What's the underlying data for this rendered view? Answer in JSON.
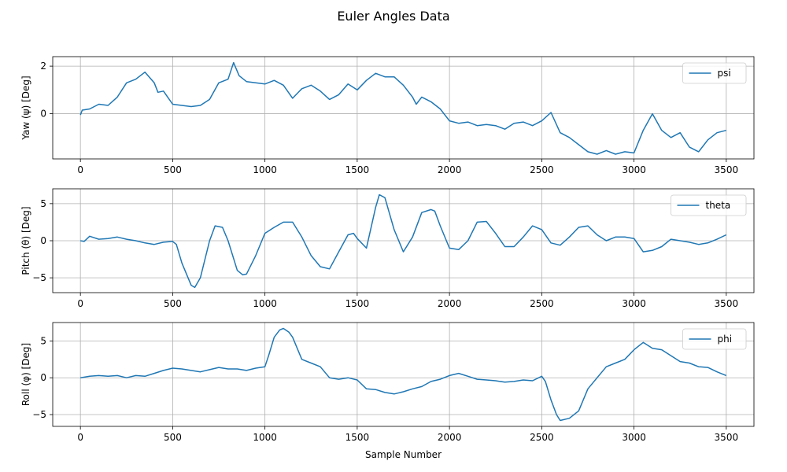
{
  "figure": {
    "title": "Euler Angles Data"
  },
  "chart_data": [
    {
      "type": "line",
      "xlabel": "",
      "ylabel": "Yaw (ψ) [Deg]",
      "xlim": [
        -150,
        3650
      ],
      "ylim": [
        -1.9,
        2.4
      ],
      "xticks": [
        0,
        500,
        1000,
        1500,
        2000,
        2500,
        3000,
        3500
      ],
      "yticks": [
        0,
        2
      ],
      "grid": true,
      "legend_position": "top-right",
      "color": "#1f77b4",
      "series": [
        {
          "name": "psi",
          "x": [
            0,
            10,
            50,
            100,
            150,
            200,
            250,
            300,
            350,
            400,
            420,
            450,
            500,
            550,
            600,
            650,
            700,
            750,
            800,
            830,
            860,
            900,
            950,
            1000,
            1050,
            1100,
            1150,
            1200,
            1250,
            1300,
            1350,
            1400,
            1450,
            1500,
            1550,
            1600,
            1650,
            1700,
            1750,
            1800,
            1820,
            1850,
            1900,
            1950,
            2000,
            2050,
            2100,
            2150,
            2200,
            2250,
            2300,
            2350,
            2400,
            2450,
            2500,
            2550,
            2600,
            2650,
            2700,
            2750,
            2800,
            2850,
            2900,
            2950,
            3000,
            3050,
            3100,
            3150,
            3200,
            3250,
            3300,
            3350,
            3400,
            3450,
            3500
          ],
          "values": [
            -0.05,
            0.15,
            0.2,
            0.4,
            0.35,
            0.7,
            1.3,
            1.45,
            1.75,
            1.3,
            0.9,
            0.95,
            0.4,
            0.35,
            0.3,
            0.35,
            0.6,
            1.3,
            1.45,
            2.15,
            1.6,
            1.35,
            1.3,
            1.25,
            1.4,
            1.2,
            0.65,
            1.05,
            1.2,
            0.95,
            0.6,
            0.8,
            1.25,
            1.0,
            1.4,
            1.7,
            1.55,
            1.55,
            1.2,
            0.7,
            0.4,
            0.7,
            0.5,
            0.2,
            -0.3,
            -0.4,
            -0.35,
            -0.5,
            -0.45,
            -0.5,
            -0.65,
            -0.4,
            -0.35,
            -0.5,
            -0.3,
            0.05,
            -0.8,
            -1.0,
            -1.3,
            -1.6,
            -1.7,
            -1.55,
            -1.7,
            -1.6,
            -1.65,
            -0.7,
            0.0,
            -0.7,
            -1.0,
            -0.8,
            -1.4,
            -1.6,
            -1.1,
            -0.8,
            -0.7
          ]
        }
      ]
    },
    {
      "type": "line",
      "xlabel": "",
      "ylabel": "Pitch (θ) [Deg]",
      "xlim": [
        -150,
        3650
      ],
      "ylim": [
        -7,
        7
      ],
      "xticks": [
        0,
        500,
        1000,
        1500,
        2000,
        2500,
        3000,
        3500
      ],
      "yticks": [
        -5,
        0,
        5
      ],
      "grid": true,
      "legend_position": "top-right",
      "color": "#1f77b4",
      "series": [
        {
          "name": "theta",
          "x": [
            0,
            20,
            50,
            100,
            150,
            200,
            250,
            300,
            350,
            400,
            450,
            500,
            520,
            550,
            600,
            620,
            650,
            700,
            730,
            770,
            800,
            850,
            880,
            900,
            950,
            1000,
            1050,
            1100,
            1150,
            1200,
            1250,
            1300,
            1350,
            1400,
            1450,
            1480,
            1500,
            1550,
            1600,
            1620,
            1650,
            1700,
            1750,
            1800,
            1850,
            1900,
            1920,
            1950,
            2000,
            2050,
            2100,
            2150,
            2200,
            2250,
            2300,
            2350,
            2400,
            2450,
            2500,
            2550,
            2600,
            2650,
            2700,
            2750,
            2800,
            2850,
            2900,
            2950,
            3000,
            3050,
            3100,
            3150,
            3200,
            3250,
            3300,
            3350,
            3400,
            3450,
            3500
          ],
          "values": [
            0.0,
            -0.1,
            0.6,
            0.2,
            0.3,
            0.5,
            0.2,
            0.0,
            -0.3,
            -0.5,
            -0.2,
            -0.1,
            -0.5,
            -3.0,
            -6.0,
            -6.3,
            -5.0,
            0.0,
            2.0,
            1.8,
            0.0,
            -4.0,
            -4.6,
            -4.5,
            -2.0,
            1.0,
            1.8,
            2.5,
            2.5,
            0.5,
            -2.0,
            -3.5,
            -3.8,
            -1.5,
            0.8,
            1.0,
            0.3,
            -1.0,
            4.5,
            6.2,
            5.8,
            1.5,
            -1.5,
            0.5,
            3.8,
            4.2,
            4.0,
            2.0,
            -1.0,
            -1.2,
            0.0,
            2.5,
            2.6,
            1.0,
            -0.8,
            -0.8,
            0.5,
            2.0,
            1.5,
            -0.3,
            -0.6,
            0.5,
            1.8,
            2.0,
            0.8,
            0.0,
            0.5,
            0.5,
            0.3,
            -1.5,
            -1.3,
            -0.8,
            0.2,
            0.0,
            -0.2,
            -0.5,
            -0.3,
            0.2,
            0.8
          ]
        }
      ]
    },
    {
      "type": "line",
      "xlabel": "Sample Number",
      "ylabel": "Roll (φ) [Deg]",
      "xlim": [
        -150,
        3650
      ],
      "ylim": [
        -6.6,
        7.5
      ],
      "xticks": [
        0,
        500,
        1000,
        1500,
        2000,
        2500,
        3000,
        3500
      ],
      "yticks": [
        -5,
        0,
        5
      ],
      "grid": true,
      "legend_position": "top-right",
      "color": "#1f77b4",
      "series": [
        {
          "name": "phi",
          "x": [
            0,
            50,
            100,
            150,
            200,
            250,
            300,
            350,
            400,
            450,
            500,
            550,
            600,
            650,
            700,
            750,
            800,
            850,
            900,
            950,
            1000,
            1020,
            1050,
            1080,
            1100,
            1130,
            1150,
            1200,
            1250,
            1300,
            1350,
            1400,
            1450,
            1500,
            1550,
            1600,
            1650,
            1700,
            1750,
            1800,
            1850,
            1900,
            1950,
            2000,
            2050,
            2100,
            2150,
            2200,
            2250,
            2300,
            2350,
            2400,
            2450,
            2500,
            2520,
            2550,
            2580,
            2600,
            2650,
            2700,
            2750,
            2800,
            2850,
            2900,
            2950,
            3000,
            3050,
            3100,
            3150,
            3200,
            3250,
            3300,
            3350,
            3400,
            3450,
            3500
          ],
          "values": [
            0.0,
            0.2,
            0.3,
            0.2,
            0.3,
            0.0,
            0.3,
            0.2,
            0.6,
            1.0,
            1.3,
            1.2,
            1.0,
            0.8,
            1.1,
            1.4,
            1.2,
            1.2,
            1.0,
            1.3,
            1.5,
            3.0,
            5.5,
            6.5,
            6.7,
            6.2,
            5.5,
            2.5,
            2.0,
            1.5,
            0.0,
            -0.2,
            0.0,
            -0.3,
            -1.5,
            -1.6,
            -2.0,
            -2.2,
            -1.9,
            -1.5,
            -1.2,
            -0.5,
            -0.2,
            0.3,
            0.6,
            0.2,
            -0.2,
            -0.3,
            -0.4,
            -0.6,
            -0.5,
            -0.3,
            -0.4,
            0.2,
            -0.5,
            -3.0,
            -5.0,
            -5.8,
            -5.5,
            -4.5,
            -1.5,
            0.0,
            1.5,
            2.0,
            2.5,
            3.8,
            4.8,
            4.0,
            3.8,
            3.0,
            2.2,
            2.0,
            1.5,
            1.4,
            0.8,
            0.3
          ]
        }
      ]
    }
  ]
}
